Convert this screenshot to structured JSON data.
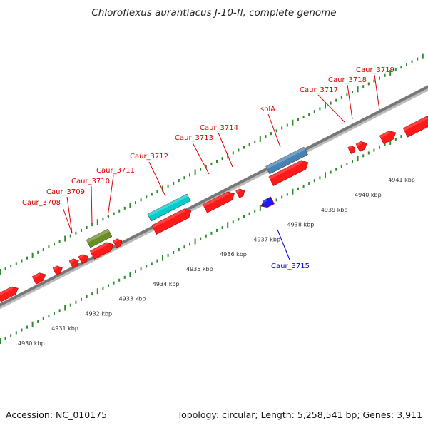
{
  "header": {
    "title": "Chloroflexus aurantiacus J-10-fl, complete genome"
  },
  "footer": {
    "accession": "Accession: NC_010175",
    "summary": "Topology: circular; Length: 5,258,541 bp; Genes: 3,911"
  },
  "colors": {
    "forward_gene": "#ff1a1a",
    "reverse_gene": "#1a1aff",
    "backbone": "#777777",
    "tick_dot": "#2e8b2e",
    "label_red": "#dd0000",
    "label_blue": "#0000cc",
    "feature_olive": "#6b8e23",
    "feature_cyan": "#00cccc",
    "feature_steel": "#4682b4"
  },
  "scale": {
    "unit": "kbp",
    "ticks": [
      {
        "value": 4930,
        "label": "4930 kbp"
      },
      {
        "value": 4931,
        "label": "4931 kbp"
      },
      {
        "value": 4932,
        "label": "4932 kbp"
      },
      {
        "value": 4933,
        "label": "4933 kbp"
      },
      {
        "value": 4934,
        "label": "4934 kbp"
      },
      {
        "value": 4935,
        "label": "4935 kbp"
      },
      {
        "value": 4936,
        "label": "4936 kbp"
      },
      {
        "value": 4937,
        "label": "4937 kbp"
      },
      {
        "value": 4938,
        "label": "4938 kbp"
      },
      {
        "value": 4939,
        "label": "4939 kbp"
      },
      {
        "value": 4940,
        "label": "4940 kbp"
      },
      {
        "value": 4941,
        "label": "4941 kbp"
      }
    ]
  },
  "gene_labels": [
    {
      "name": "Caur_3708",
      "strand": "forward"
    },
    {
      "name": "Caur_3709",
      "strand": "forward"
    },
    {
      "name": "Caur_3710",
      "strand": "forward"
    },
    {
      "name": "Caur_3711",
      "strand": "forward"
    },
    {
      "name": "Caur_3712",
      "strand": "forward"
    },
    {
      "name": "Caur_3713",
      "strand": "forward"
    },
    {
      "name": "Caur_3714",
      "strand": "forward"
    },
    {
      "name": "solA",
      "strand": "forward"
    },
    {
      "name": "Caur_3717",
      "strand": "forward"
    },
    {
      "name": "Caur_3718",
      "strand": "forward"
    },
    {
      "name": "Caur_3719",
      "strand": "forward"
    },
    {
      "name": "Caur_3715",
      "strand": "reverse"
    }
  ]
}
